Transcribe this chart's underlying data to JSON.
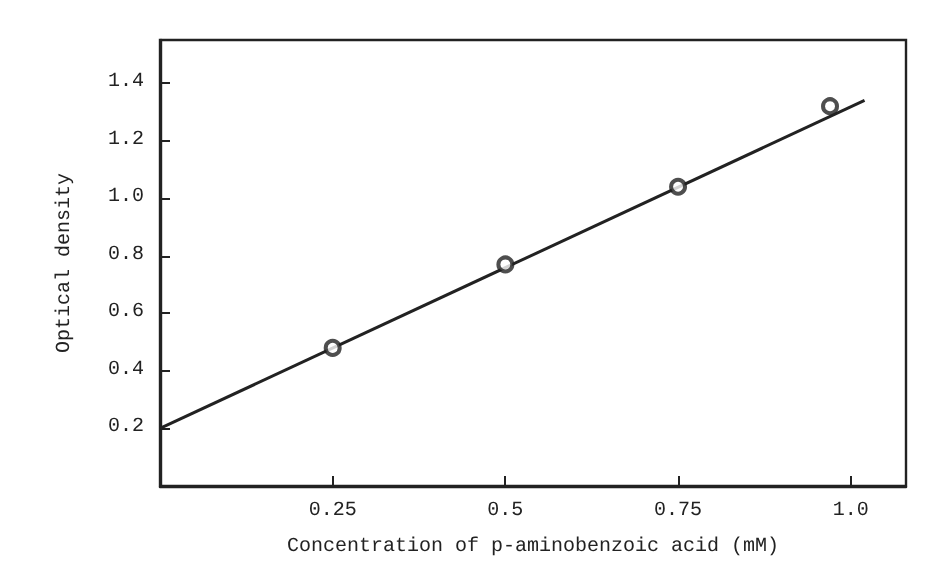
{
  "chart_data": {
    "type": "scatter",
    "xlabel": "Concentration of p-aminobenzoic acid (mM)",
    "ylabel": "Optical density",
    "xlim": [
      0,
      1.08
    ],
    "xticks": [
      0.25,
      0.5,
      0.75,
      {
        "value": 1,
        "label": "1.0"
      }
    ],
    "ylim": [
      0,
      1.55
    ],
    "yticks": [
      0.2,
      0.4,
      0.6,
      0.8,
      {
        "value": 1,
        "label": "1.0"
      },
      1.2,
      1.4
    ],
    "grid": false,
    "series": [
      {
        "marker": "circle",
        "color": "#222222",
        "x": [
          0.25,
          0.5,
          0.75,
          0.97
        ],
        "values": [
          0.48,
          0.77,
          1.04,
          1.32
        ]
      },
      {
        "type": "line",
        "marker": "none",
        "color": "#222222",
        "line_style": "solid",
        "x": [
          0,
          1.02
        ],
        "values": [
          0.2,
          1.34
        ]
      }
    ]
  }
}
